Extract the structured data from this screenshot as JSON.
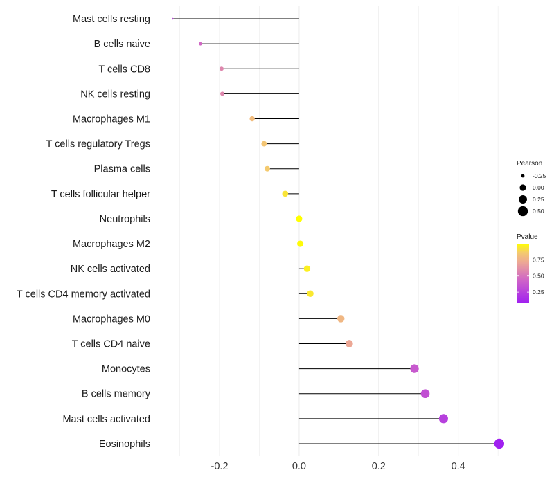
{
  "chart_data": {
    "type": "lollipop",
    "title": "",
    "xlabel": "",
    "ylabel": "",
    "xlim": [
      -0.355,
      0.505
    ],
    "xticks": [
      -0.2,
      0.0,
      0.2,
      0.4
    ],
    "xtick_labels": [
      "-0.2",
      "0.0",
      "0.2",
      "0.4"
    ],
    "grid": true,
    "categories": [
      "Mast cells resting",
      "B cells naive",
      "T cells CD8",
      "NK cells resting",
      "Macrophages M1",
      "T cells regulatory  Tregs ",
      "Plasma cells",
      "T cells follicular helper",
      "Neutrophils",
      "Macrophages M2",
      "NK cells activated",
      "T cells CD4 memory activated",
      "Macrophages M0",
      "T cells CD4 naive",
      "Monocytes",
      "B cells memory",
      "Mast cells activated",
      "Eosinophils"
    ],
    "pearson": [
      -0.318,
      -0.248,
      -0.195,
      -0.193,
      -0.118,
      -0.088,
      -0.08,
      -0.035,
      0.0,
      0.003,
      0.02,
      0.028,
      0.105,
      0.126,
      0.29,
      0.317,
      0.363,
      0.503
    ],
    "pvalue": [
      0.28,
      0.45,
      0.58,
      0.58,
      0.8,
      0.84,
      0.86,
      0.93,
      1.0,
      0.99,
      0.96,
      0.94,
      0.78,
      0.71,
      0.38,
      0.33,
      0.25,
      0.08
    ],
    "legend": {
      "position": "right",
      "size_title": "Pearson",
      "size_breaks": [
        -0.25,
        0.0,
        0.25,
        0.5
      ],
      "size_labels": [
        "-0.25",
        "0.00",
        "0.25",
        "0.50"
      ],
      "color_title": "Pvalue",
      "color_breaks": [
        0.75,
        0.5,
        0.25
      ],
      "color_labels": [
        "0.75",
        "0.50",
        "0.25"
      ],
      "color_low": "#a020f0",
      "color_high": "#ffff00",
      "color_range": [
        0.08,
        1.0
      ]
    },
    "segment_color": "#000000",
    "grid_color": "#ebebeb"
  }
}
